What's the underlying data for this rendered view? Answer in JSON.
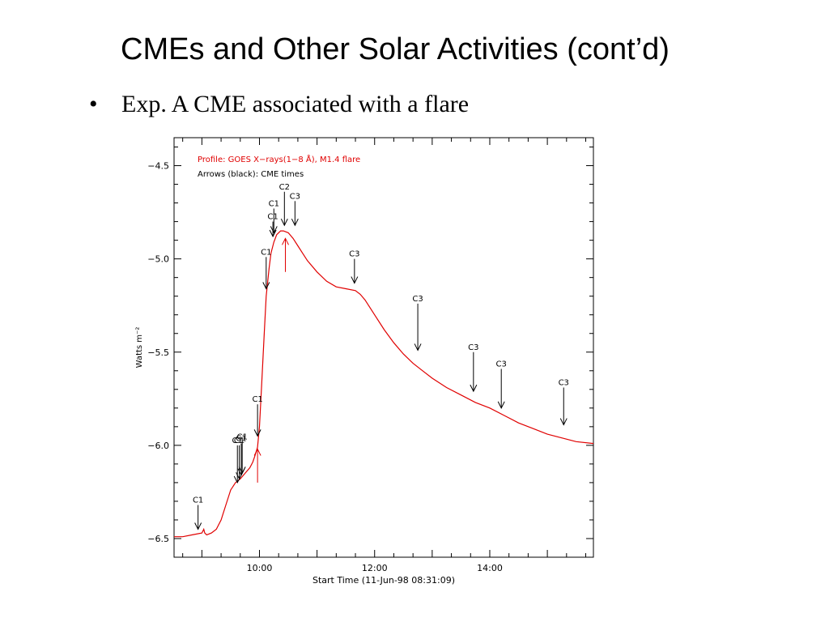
{
  "slide": {
    "title": "CMEs and Other Solar Activities (cont’d)",
    "bullet_symbol": "•",
    "bullet_text": "Exp. A CME associated with a flare"
  },
  "chart_data": {
    "type": "line",
    "title": "",
    "xlabel": "Start Time (11-Jun-98 08:31:09)",
    "ylabel": "Watts m⁻²",
    "xlim": [
      "08:31",
      "15:48"
    ],
    "ylim": [
      -6.6,
      -4.35
    ],
    "x_ticks": [
      "10:00",
      "12:00",
      "14:00"
    ],
    "y_ticks": [
      -4.5,
      -5.0,
      -5.5,
      -6.0,
      -6.5
    ],
    "y_tick_labels": [
      "−4.5",
      "−5.0",
      "−5.5",
      "−6.0",
      "−6.5"
    ],
    "annotations": [
      {
        "text": "Profile: GOES X−rays(1−8 Å), M1.4 flare",
        "color": "#e00000"
      },
      {
        "text": "Arrows (black): CME times",
        "color": "#000000"
      }
    ],
    "series": [
      {
        "color": "#e00000",
        "x": [
          "08:31",
          "08:40",
          "08:50",
          "09:00",
          "09:02",
          "09:03",
          "09:05",
          "09:10",
          "09:15",
          "09:20",
          "09:25",
          "09:30",
          "09:35",
          "09:40",
          "09:45",
          "09:50",
          "09:53",
          "09:55",
          "09:58",
          "10:00",
          "10:02",
          "10:05",
          "10:07",
          "10:10",
          "10:12",
          "10:15",
          "10:18",
          "10:20",
          "10:22",
          "10:25",
          "10:30",
          "10:35",
          "10:40",
          "10:45",
          "10:50",
          "11:00",
          "11:10",
          "11:20",
          "11:30",
          "11:40",
          "11:45",
          "11:50",
          "12:00",
          "12:10",
          "12:20",
          "12:30",
          "12:40",
          "12:50",
          "13:00",
          "13:15",
          "13:30",
          "13:45",
          "14:00",
          "14:15",
          "14:30",
          "14:45",
          "15:00",
          "15:15",
          "15:30",
          "15:48"
        ],
        "y": [
          -6.49,
          -6.49,
          -6.48,
          -6.47,
          -6.45,
          -6.47,
          -6.48,
          -6.47,
          -6.45,
          -6.4,
          -6.32,
          -6.24,
          -6.2,
          -6.18,
          -6.15,
          -6.12,
          -6.09,
          -6.06,
          -6.01,
          -5.9,
          -5.7,
          -5.4,
          -5.2,
          -5.05,
          -4.97,
          -4.91,
          -4.87,
          -4.86,
          -4.85,
          -4.85,
          -4.86,
          -4.89,
          -4.93,
          -4.97,
          -5.01,
          -5.07,
          -5.12,
          -5.15,
          -5.16,
          -5.17,
          -5.19,
          -5.22,
          -5.3,
          -5.38,
          -5.45,
          -5.51,
          -5.56,
          -5.6,
          -5.64,
          -5.69,
          -5.73,
          -5.77,
          -5.8,
          -5.84,
          -5.88,
          -5.91,
          -5.94,
          -5.96,
          -5.98,
          -5.99
        ]
      }
    ],
    "flare_arrows": [
      {
        "time": "09:58",
        "from": -6.2,
        "to": -6.02,
        "color": "#e00000"
      },
      {
        "time": "10:27",
        "from": -5.07,
        "to": -4.89,
        "color": "#e00000"
      }
    ],
    "cme_arrows": [
      {
        "label": "C1",
        "time": "08:56",
        "top": -6.32,
        "tip": -6.45
      },
      {
        "label": "C1",
        "time": "09:37",
        "top": -6.0,
        "tip": -6.2
      },
      {
        "label": "C1",
        "time": "09:39",
        "top": -6.0,
        "tip": -6.18
      },
      {
        "label": "C1",
        "time": "09:41",
        "top": -5.99,
        "tip": -6.16
      },
      {
        "label": "C1",
        "time": "09:42",
        "top": -5.98,
        "tip": -6.15
      },
      {
        "label": "C1",
        "time": "09:58",
        "top": -5.78,
        "tip": -5.95
      },
      {
        "label": "C1",
        "time": "10:07",
        "top": -4.99,
        "tip": -5.16
      },
      {
        "label": "C1",
        "time": "10:14",
        "top": -4.8,
        "tip": -4.88
      },
      {
        "label": "C1",
        "time": "10:15",
        "top": -4.73,
        "tip": -4.86
      },
      {
        "label": "C2",
        "time": "10:26",
        "top": -4.64,
        "tip": -4.82
      },
      {
        "label": "C3",
        "time": "10:37",
        "top": -4.69,
        "tip": -4.82
      },
      {
        "label": "C3",
        "time": "11:39",
        "top": -5.0,
        "tip": -5.13
      },
      {
        "label": "C3",
        "time": "12:45",
        "top": -5.24,
        "tip": -5.49
      },
      {
        "label": "C3",
        "time": "13:43",
        "top": -5.5,
        "tip": -5.71
      },
      {
        "label": "C3",
        "time": "14:12",
        "top": -5.59,
        "tip": -5.8
      },
      {
        "label": "C3",
        "time": "15:17",
        "top": -5.69,
        "tip": -5.89
      }
    ]
  }
}
